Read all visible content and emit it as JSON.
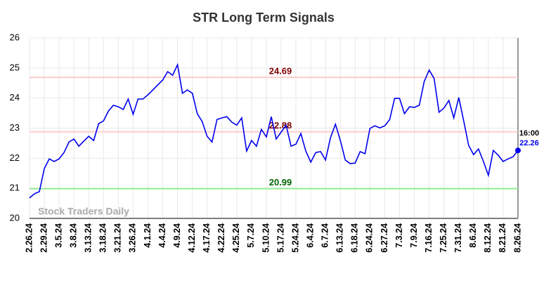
{
  "chart_data": {
    "type": "line",
    "title": "STR Long Term Signals",
    "categories": [
      "2.26.24",
      null,
      null,
      "2.29.24",
      null,
      null,
      "3.5.24",
      null,
      null,
      "3.8.24",
      null,
      null,
      "3.13.24",
      null,
      null,
      "3.18.24",
      null,
      null,
      "3.21.24",
      null,
      null,
      "3.26.24",
      null,
      null,
      "4.1.24",
      null,
      null,
      "4.4.24",
      null,
      null,
      "4.9.24",
      null,
      null,
      "4.12.24",
      null,
      null,
      "4.17.24",
      null,
      null,
      "4.22.24",
      null,
      null,
      "4.25.24",
      null,
      null,
      "5.7.24",
      null,
      null,
      "5.10.24",
      null,
      null,
      "5.17.24",
      null,
      null,
      "5.24.24",
      null,
      null,
      "6.4.24",
      null,
      null,
      "6.7.24",
      null,
      null,
      "6.13.24",
      null,
      null,
      "6.18.24",
      null,
      null,
      "6.24.24",
      null,
      null,
      "6.27.24",
      null,
      null,
      "7.3.24",
      null,
      null,
      "7.9.24",
      null,
      null,
      "7.16.24",
      null,
      null,
      "7.25.24",
      null,
      null,
      "7.31.24",
      null,
      null,
      "8.6.24",
      null,
      null,
      "8.12.24",
      null,
      null,
      "8.21.24",
      null,
      null,
      "8.26.24"
    ],
    "values": [
      20.68,
      20.82,
      20.89,
      21.66,
      21.98,
      21.89,
      21.98,
      22.19,
      22.54,
      22.64,
      22.4,
      22.57,
      22.73,
      22.59,
      23.15,
      23.24,
      23.57,
      23.76,
      23.71,
      23.62,
      23.97,
      23.46,
      23.97,
      23.97,
      24.11,
      24.27,
      24.44,
      24.6,
      24.88,
      24.76,
      25.11,
      24.16,
      24.27,
      24.16,
      23.48,
      23.22,
      22.73,
      22.54,
      23.29,
      23.34,
      23.38,
      23.2,
      23.1,
      23.34,
      22.24,
      22.59,
      22.4,
      22.96,
      22.71,
      23.38,
      22.64,
      22.87,
      23.1,
      22.4,
      22.47,
      22.82,
      22.24,
      21.87,
      22.19,
      22.22,
      21.94,
      22.68,
      23.13,
      22.59,
      21.94,
      21.82,
      21.84,
      22.22,
      22.15,
      22.99,
      23.08,
      23.01,
      23.08,
      23.29,
      23.99,
      23.99,
      23.48,
      23.71,
      23.69,
      23.76,
      24.55,
      24.93,
      24.65,
      23.53,
      23.67,
      23.92,
      23.34,
      24.02,
      23.24,
      22.43,
      22.12,
      22.31,
      21.89,
      21.43,
      22.26,
      22.1,
      21.89,
      21.98,
      22.05,
      22.26
    ],
    "color": "#0000ee",
    "ylim": [
      20,
      26
    ],
    "yticks": [
      20,
      21,
      22,
      23,
      24,
      25,
      26
    ],
    "grid": true,
    "hlines": [
      {
        "value": 24.69,
        "color": "#ffcccc",
        "label_color": "#800000"
      },
      {
        "value": 22.88,
        "color": "#ffcccc",
        "label_color": "#800000"
      },
      {
        "value": 20.99,
        "color": "#90ee90",
        "label_color": "#006400"
      }
    ],
    "last_time": "16:00",
    "watermark": "Stock Traders Daily"
  }
}
